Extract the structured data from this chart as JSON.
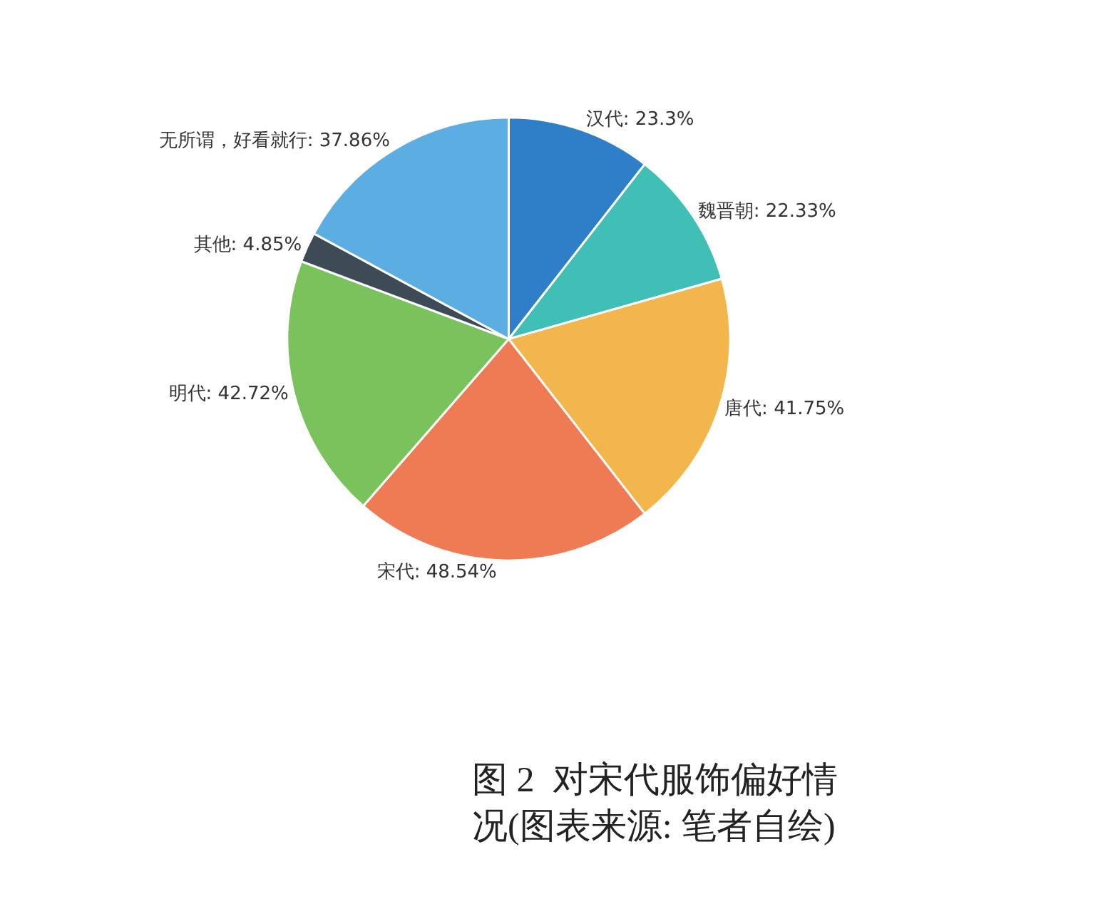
{
  "chart_data": {
    "type": "pie",
    "categories": [
      "汉代",
      "魏晋朝",
      "唐代",
      "宋代",
      "明代",
      "其他",
      "无所谓，好看就行"
    ],
    "values": [
      23.3,
      22.33,
      41.75,
      48.54,
      42.72,
      4.85,
      37.86
    ],
    "colors": [
      "#2f7fc8",
      "#3fbfb5",
      "#f2b64c",
      "#ef7b55",
      "#7ac35c",
      "#3d4b57",
      "#5cade2"
    ],
    "value_labels": [
      "23.3%",
      "22.33%",
      "41.75%",
      "48.54%",
      "42.72%",
      "4.85%",
      "37.86%"
    ],
    "annotations": [
      "图 2  对宋代服饰偏好情况(图表来源: 笔者自绘)"
    ],
    "legend": false
  }
}
